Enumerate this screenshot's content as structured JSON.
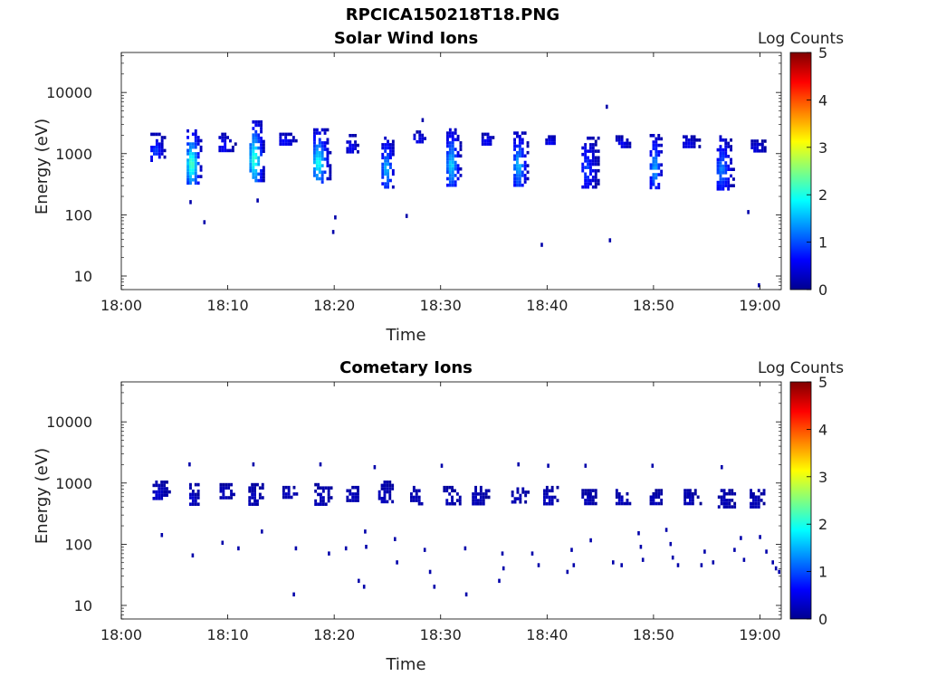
{
  "figure_title": "RPCICA150218T18.PNG",
  "colors": {
    "scale": [
      "#00008f",
      "#0000ff",
      "#0080ff",
      "#00ffff",
      "#80ff80",
      "#ffff00",
      "#ff8000",
      "#ff0000",
      "#800000"
    ],
    "axis": "#000000"
  },
  "chart_data": [
    {
      "type": "heatmap",
      "title": "Solar Wind Ions",
      "xlabel": "Time",
      "ylabel": "Energy (eV)",
      "x_ticks": [
        "18:00",
        "18:10",
        "18:20",
        "18:30",
        "18:40",
        "18:50",
        "19:00"
      ],
      "xlim_minutes": [
        0,
        62
      ],
      "y_scale": "log",
      "y_ticks": [
        "10",
        "100",
        "1000",
        "10000"
      ],
      "ylim": [
        6,
        45000
      ],
      "colorbar": {
        "label": "Log Counts",
        "range": [
          0,
          5
        ],
        "ticks": [
          "0",
          "1",
          "2",
          "3",
          "4",
          "5"
        ]
      },
      "grid": false,
      "blobs": [
        {
          "t": 3.1,
          "e_lo": 700,
          "e_hi": 2200,
          "peak": 1.0
        },
        {
          "t": 6.5,
          "e_lo": 300,
          "e_hi": 2500,
          "peak": 2.5
        },
        {
          "t": 9.5,
          "e_lo": 1000,
          "e_hi": 2200,
          "peak": 0.7
        },
        {
          "t": 12.4,
          "e_lo": 350,
          "e_hi": 3500,
          "peak": 2.4
        },
        {
          "t": 15.2,
          "e_lo": 1300,
          "e_hi": 2200,
          "peak": 0.7
        },
        {
          "t": 18.4,
          "e_lo": 320,
          "e_hi": 2600,
          "peak": 2.1
        },
        {
          "t": 21.5,
          "e_lo": 1000,
          "e_hi": 2100,
          "peak": 0.7
        },
        {
          "t": 24.8,
          "e_lo": 270,
          "e_hi": 1900,
          "peak": 1.7
        },
        {
          "t": 27.8,
          "e_lo": 1400,
          "e_hi": 2400,
          "peak": 0.6
        },
        {
          "t": 30.9,
          "e_lo": 280,
          "e_hi": 2600,
          "peak": 1.8
        },
        {
          "t": 34.2,
          "e_lo": 1300,
          "e_hi": 2200,
          "peak": 0.7
        },
        {
          "t": 37.2,
          "e_lo": 270,
          "e_hi": 2300,
          "peak": 1.7
        },
        {
          "t": 40.2,
          "e_lo": 1400,
          "e_hi": 2000,
          "peak": 0.6
        },
        {
          "t": 43.6,
          "e_lo": 260,
          "e_hi": 1900,
          "peak": 1.0
        },
        {
          "t": 46.8,
          "e_lo": 1300,
          "e_hi": 2000,
          "peak": 0.6
        },
        {
          "t": 50.0,
          "e_lo": 260,
          "e_hi": 2100,
          "peak": 1.6
        },
        {
          "t": 53.1,
          "e_lo": 1300,
          "e_hi": 2000,
          "peak": 0.6
        },
        {
          "t": 56.3,
          "e_lo": 250,
          "e_hi": 2000,
          "peak": 1.3
        },
        {
          "t": 59.5,
          "e_lo": 1000,
          "e_hi": 1700,
          "peak": 0.5
        }
      ],
      "points": [
        {
          "t": 6.5,
          "e": 160
        },
        {
          "t": 7.8,
          "e": 75
        },
        {
          "t": 12.8,
          "e": 170
        },
        {
          "t": 20.1,
          "e": 90
        },
        {
          "t": 19.9,
          "e": 52
        },
        {
          "t": 26.8,
          "e": 95
        },
        {
          "t": 39.5,
          "e": 32
        },
        {
          "t": 45.9,
          "e": 38
        },
        {
          "t": 45.6,
          "e": 5800
        },
        {
          "t": 28.3,
          "e": 3500
        },
        {
          "t": 58.9,
          "e": 110
        },
        {
          "t": 59.9,
          "e": 7
        }
      ]
    },
    {
      "type": "heatmap",
      "title": "Cometary Ions",
      "xlabel": "Time",
      "ylabel": "Energy (eV)",
      "x_ticks": [
        "18:00",
        "18:10",
        "18:20",
        "18:30",
        "18:40",
        "18:50",
        "19:00"
      ],
      "xlim_minutes": [
        0,
        62
      ],
      "y_scale": "log",
      "y_ticks": [
        "10",
        "100",
        "1000",
        "10000"
      ],
      "ylim": [
        6,
        45000
      ],
      "colorbar": {
        "label": "Log Counts",
        "range": [
          0,
          5
        ],
        "ticks": [
          "0",
          "1",
          "2",
          "3",
          "4",
          "5"
        ]
      },
      "grid": false,
      "blobs": [
        {
          "t": 3.3,
          "e_lo": 550,
          "e_hi": 1100,
          "peak": 0.3
        },
        {
          "t": 6.5,
          "e_lo": 450,
          "e_hi": 1000,
          "peak": 0.3
        },
        {
          "t": 9.6,
          "e_lo": 550,
          "e_hi": 1000,
          "peak": 0.2
        },
        {
          "t": 12.3,
          "e_lo": 450,
          "e_hi": 1000,
          "peak": 0.2
        },
        {
          "t": 15.5,
          "e_lo": 550,
          "e_hi": 900,
          "peak": 0.2
        },
        {
          "t": 18.5,
          "e_lo": 450,
          "e_hi": 1000,
          "peak": 0.2
        },
        {
          "t": 21.5,
          "e_lo": 500,
          "e_hi": 900,
          "peak": 0.2
        },
        {
          "t": 24.5,
          "e_lo": 450,
          "e_hi": 1100,
          "peak": 0.2
        },
        {
          "t": 27.5,
          "e_lo": 450,
          "e_hi": 900,
          "peak": 0.2
        },
        {
          "t": 30.6,
          "e_lo": 450,
          "e_hi": 900,
          "peak": 0.2
        },
        {
          "t": 33.3,
          "e_lo": 450,
          "e_hi": 900,
          "peak": 0.2
        },
        {
          "t": 37.0,
          "e_lo": 450,
          "e_hi": 850,
          "peak": 0.2
        },
        {
          "t": 40.0,
          "e_lo": 450,
          "e_hi": 900,
          "peak": 0.2
        },
        {
          "t": 43.6,
          "e_lo": 450,
          "e_hi": 800,
          "peak": 0.2
        },
        {
          "t": 46.8,
          "e_lo": 450,
          "e_hi": 800,
          "peak": 0.2
        },
        {
          "t": 50.0,
          "e_lo": 450,
          "e_hi": 800,
          "peak": 0.2
        },
        {
          "t": 53.2,
          "e_lo": 450,
          "e_hi": 800,
          "peak": 0.2
        },
        {
          "t": 56.4,
          "e_lo": 400,
          "e_hi": 800,
          "peak": 0.2
        },
        {
          "t": 59.4,
          "e_lo": 400,
          "e_hi": 800,
          "peak": 0.2
        }
      ],
      "points": [
        {
          "t": 6.4,
          "e": 2000
        },
        {
          "t": 12.4,
          "e": 2000
        },
        {
          "t": 18.7,
          "e": 2000
        },
        {
          "t": 23.8,
          "e": 1800
        },
        {
          "t": 30.1,
          "e": 1900
        },
        {
          "t": 37.3,
          "e": 2000
        },
        {
          "t": 40.1,
          "e": 1900
        },
        {
          "t": 43.6,
          "e": 1900
        },
        {
          "t": 49.9,
          "e": 1900
        },
        {
          "t": 56.4,
          "e": 1800
        },
        {
          "t": 3.8,
          "e": 140
        },
        {
          "t": 6.7,
          "e": 65
        },
        {
          "t": 9.5,
          "e": 105
        },
        {
          "t": 11.0,
          "e": 85
        },
        {
          "t": 13.2,
          "e": 160
        },
        {
          "t": 16.2,
          "e": 15
        },
        {
          "t": 16.4,
          "e": 85
        },
        {
          "t": 19.5,
          "e": 70
        },
        {
          "t": 21.1,
          "e": 85
        },
        {
          "t": 22.3,
          "e": 25
        },
        {
          "t": 22.8,
          "e": 20
        },
        {
          "t": 22.9,
          "e": 160
        },
        {
          "t": 23.0,
          "e": 90
        },
        {
          "t": 25.7,
          "e": 120
        },
        {
          "t": 25.9,
          "e": 50
        },
        {
          "t": 28.5,
          "e": 80
        },
        {
          "t": 29.0,
          "e": 35
        },
        {
          "t": 29.4,
          "e": 20
        },
        {
          "t": 32.3,
          "e": 85
        },
        {
          "t": 32.4,
          "e": 15
        },
        {
          "t": 35.5,
          "e": 25
        },
        {
          "t": 35.8,
          "e": 70
        },
        {
          "t": 35.9,
          "e": 40
        },
        {
          "t": 38.6,
          "e": 70
        },
        {
          "t": 39.2,
          "e": 45
        },
        {
          "t": 41.9,
          "e": 35
        },
        {
          "t": 42.3,
          "e": 80
        },
        {
          "t": 42.5,
          "e": 45
        },
        {
          "t": 44.1,
          "e": 115
        },
        {
          "t": 46.2,
          "e": 50
        },
        {
          "t": 47.0,
          "e": 45
        },
        {
          "t": 48.6,
          "e": 150
        },
        {
          "t": 48.8,
          "e": 90
        },
        {
          "t": 49.0,
          "e": 55
        },
        {
          "t": 51.2,
          "e": 170
        },
        {
          "t": 51.6,
          "e": 100
        },
        {
          "t": 51.8,
          "e": 60
        },
        {
          "t": 52.3,
          "e": 45
        },
        {
          "t": 54.5,
          "e": 45
        },
        {
          "t": 54.8,
          "e": 75
        },
        {
          "t": 55.6,
          "e": 50
        },
        {
          "t": 57.6,
          "e": 80
        },
        {
          "t": 58.2,
          "e": 125
        },
        {
          "t": 58.5,
          "e": 55
        },
        {
          "t": 60.0,
          "e": 130
        },
        {
          "t": 60.6,
          "e": 75
        },
        {
          "t": 61.2,
          "e": 50
        },
        {
          "t": 61.5,
          "e": 40
        },
        {
          "t": 61.8,
          "e": 35
        }
      ]
    }
  ]
}
